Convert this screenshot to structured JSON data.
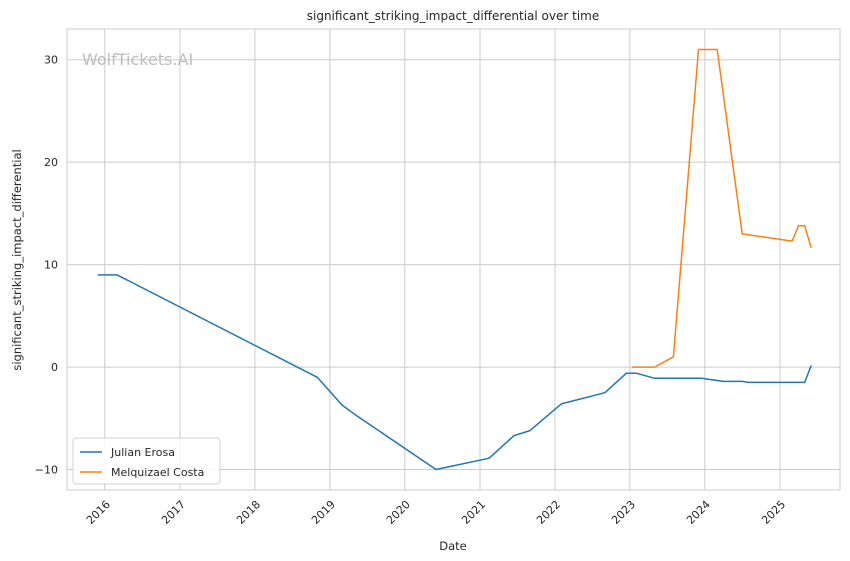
{
  "chart_data": {
    "type": "line",
    "title": "significant_striking_impact_differential over time",
    "xlabel": "Date",
    "ylabel": "significant_striking_impact_differential",
    "watermark": "WolfTickets.AI",
    "x_ticks": [
      "2016",
      "2017",
      "2018",
      "2019",
      "2020",
      "2021",
      "2022",
      "2023",
      "2024",
      "2025"
    ],
    "y_ticks": [
      -10,
      0,
      10,
      20,
      30
    ],
    "xlim": [
      "2015-07-01",
      "2025-10-20"
    ],
    "ylim": [
      -12,
      33
    ],
    "grid": true,
    "legend_position": "lower-left",
    "series": [
      {
        "name": "Julian Erosa",
        "color": "#1f77b4",
        "points": [
          [
            "2015-12-01",
            9.0
          ],
          [
            "2016-03-01",
            9.0
          ],
          [
            "2018-11-01",
            -1.0
          ],
          [
            "2019-03-01",
            -3.7
          ],
          [
            "2019-05-01",
            -4.6
          ],
          [
            "2020-06-01",
            -10.0
          ],
          [
            "2021-02-15",
            -8.9
          ],
          [
            "2021-06-15",
            -6.7
          ],
          [
            "2021-09-01",
            -6.2
          ],
          [
            "2022-02-01",
            -3.6
          ],
          [
            "2022-09-01",
            -2.5
          ],
          [
            "2022-12-15",
            -0.6
          ],
          [
            "2023-02-01",
            -0.6
          ],
          [
            "2023-05-01",
            -1.1
          ],
          [
            "2023-12-15",
            -1.1
          ],
          [
            "2024-04-01",
            -1.4
          ],
          [
            "2024-07-01",
            -1.4
          ],
          [
            "2024-08-01",
            -1.5
          ],
          [
            "2025-04-01",
            -1.5
          ],
          [
            "2025-05-01",
            -1.5
          ],
          [
            "2025-06-01",
            0.1
          ]
        ]
      },
      {
        "name": "Melquizael Costa",
        "color": "#ff7f0e",
        "points": [
          [
            "2023-01-15",
            0.0
          ],
          [
            "2023-05-01",
            0.0
          ],
          [
            "2023-08-01",
            1.0
          ],
          [
            "2023-12-01",
            31.0
          ],
          [
            "2024-03-01",
            31.0
          ],
          [
            "2024-07-01",
            13.0
          ],
          [
            "2025-03-01",
            12.3
          ],
          [
            "2025-04-01",
            13.8
          ],
          [
            "2025-05-01",
            13.8
          ],
          [
            "2025-06-01",
            11.7
          ]
        ]
      }
    ]
  }
}
